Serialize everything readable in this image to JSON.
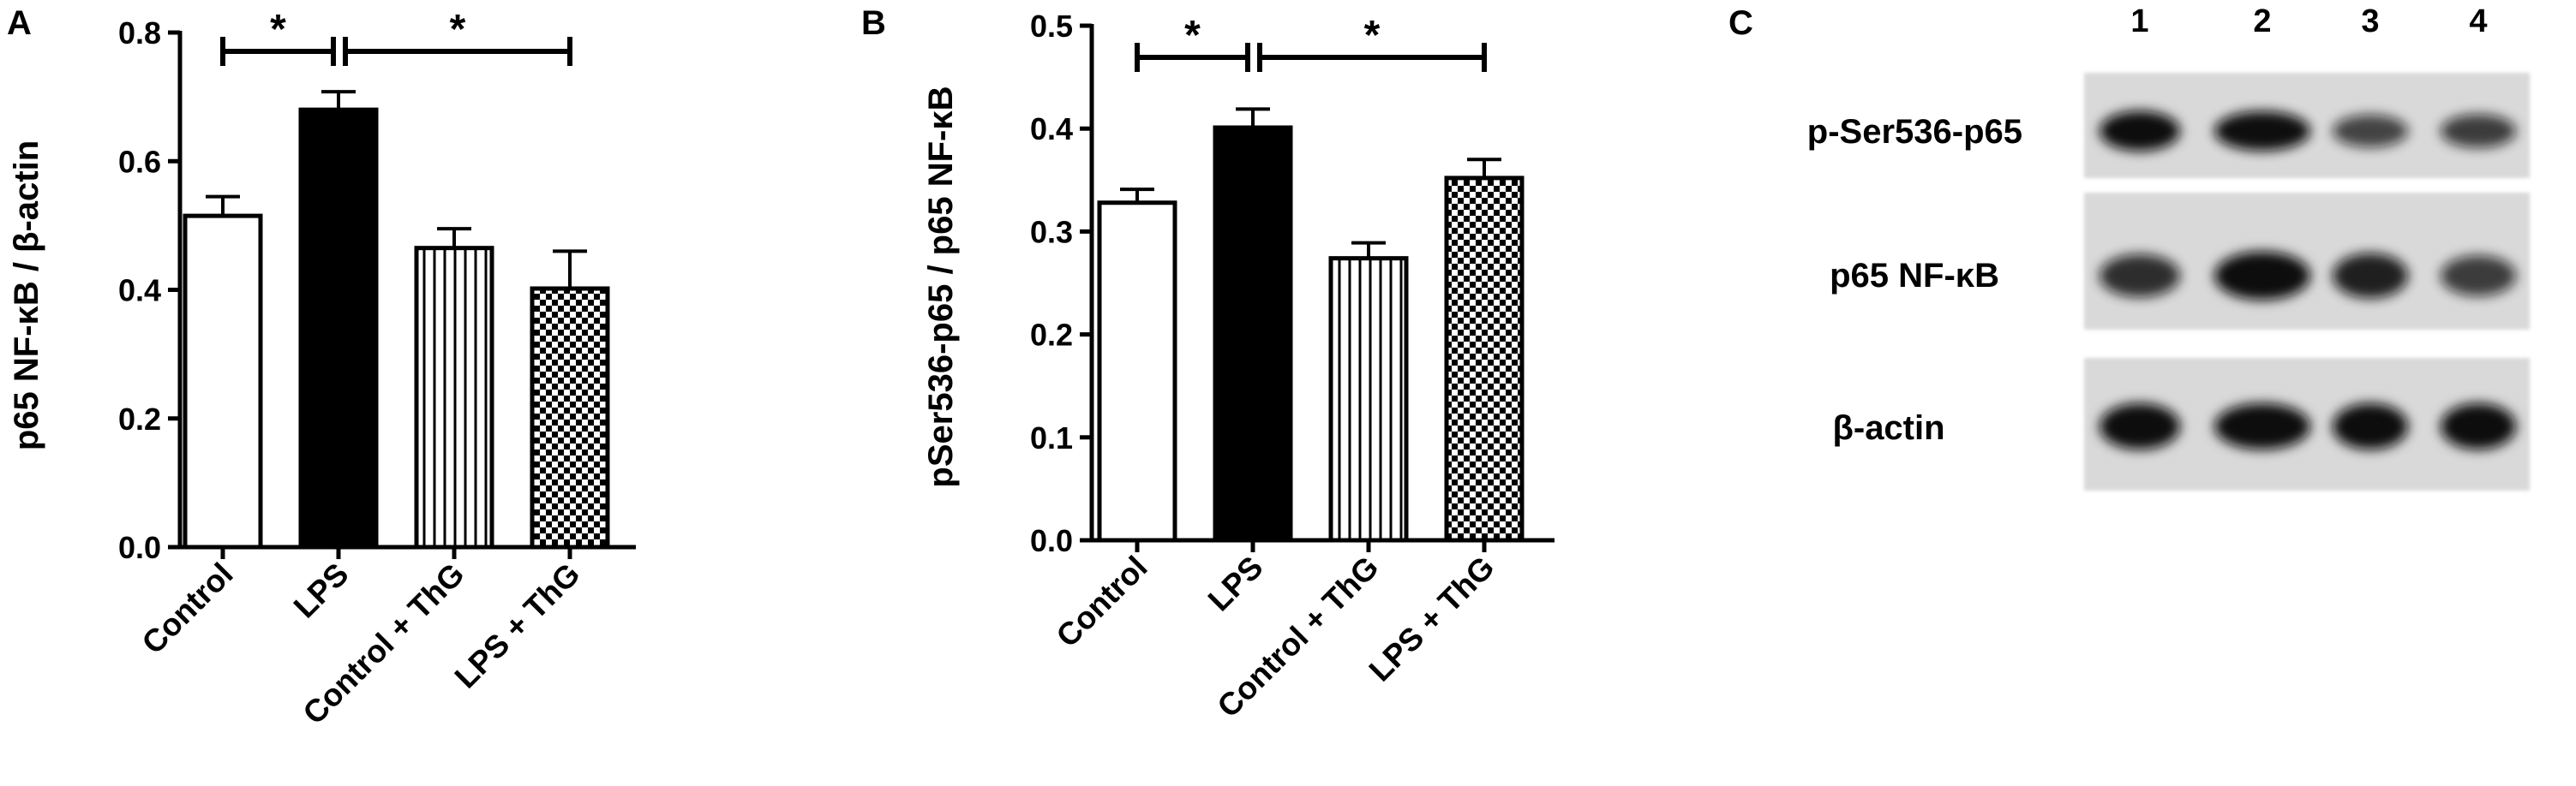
{
  "panels": {
    "A": {
      "letter": "A",
      "chart_data": {
        "type": "bar",
        "categories": [
          "Control",
          "LPS",
          "Control + ThG",
          "LPS + ThG"
        ],
        "values": [
          0.515,
          0.68,
          0.465,
          0.402
        ],
        "errors": [
          0.03,
          0.028,
          0.03,
          0.058
        ],
        "patterns": [
          "open",
          "solid",
          "vertical-lines",
          "checker"
        ],
        "ylabel": "p65 NF-κB / β-actin",
        "ylim": [
          0,
          0.8
        ],
        "yticks": [
          "0.0",
          "0.2",
          "0.4",
          "0.6",
          "0.8"
        ],
        "significance": [
          {
            "from": 0,
            "to": 1,
            "label": "*"
          },
          {
            "from": 1,
            "to": 3,
            "label": "*"
          }
        ]
      }
    },
    "B": {
      "letter": "B",
      "chart_data": {
        "type": "bar",
        "categories": [
          "Control",
          "LPS",
          "Control + ThG",
          "LPS + ThG"
        ],
        "values": [
          0.328,
          0.401,
          0.274,
          0.352
        ],
        "errors": [
          0.013,
          0.018,
          0.015,
          0.018
        ],
        "patterns": [
          "open",
          "solid",
          "vertical-lines",
          "checker"
        ],
        "ylabel": "pSer536-p65 / p65 NF-κB",
        "ylim": [
          0,
          0.5
        ],
        "yticks": [
          "0.0",
          "0.1",
          "0.2",
          "0.3",
          "0.4",
          "0.5"
        ],
        "significance": [
          {
            "from": 0,
            "to": 1,
            "label": "*"
          },
          {
            "from": 1,
            "to": 3,
            "label": "*"
          }
        ]
      }
    },
    "C": {
      "letter": "C",
      "lanes": [
        "1",
        "2",
        "3",
        "4"
      ],
      "rows": [
        {
          "label": "p-Ser536-p65",
          "intensities": [
            0.95,
            0.92,
            0.55,
            0.6
          ]
        },
        {
          "label": "p65 NF-κB",
          "intensities": [
            0.7,
            0.95,
            0.8,
            0.6
          ]
        },
        {
          "label": "β-actin",
          "intensities": [
            1.0,
            1.0,
            1.0,
            1.0
          ]
        }
      ]
    }
  },
  "colors": {
    "bar_fill": "#000000",
    "bar_stroke": "#000000",
    "blot_bg": "#d9d9d9",
    "band": "#0a0a0a"
  }
}
